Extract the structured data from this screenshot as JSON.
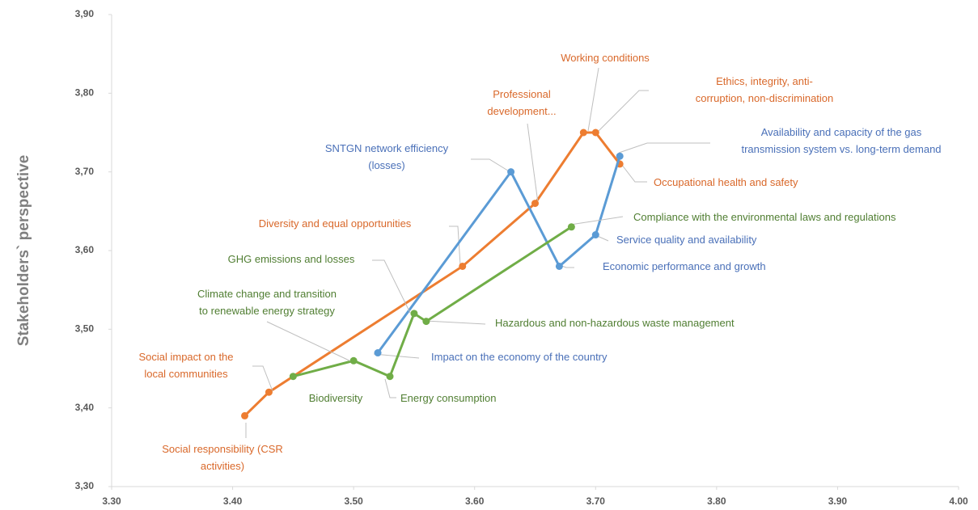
{
  "chart_data": {
    "type": "scatter",
    "y_label": "Stakeholders` perspective",
    "xlim": [
      3.3,
      4.0
    ],
    "ylim": [
      3.3,
      3.9
    ],
    "xticks": [
      {
        "value": 3.3,
        "label": "3.30"
      },
      {
        "value": 3.4,
        "label": "3.40"
      },
      {
        "value": 3.5,
        "label": "3.50"
      },
      {
        "value": 3.6,
        "label": "3.60"
      },
      {
        "value": 3.7,
        "label": "3.70"
      },
      {
        "value": 3.8,
        "label": "3.80"
      },
      {
        "value": 3.9,
        "label": "3.90"
      },
      {
        "value": 4.0,
        "label": "4.00"
      }
    ],
    "yticks": [
      {
        "value": 3.3,
        "label": "3,30"
      },
      {
        "value": 3.4,
        "label": "3,40"
      },
      {
        "value": 3.5,
        "label": "3,50"
      },
      {
        "value": 3.6,
        "label": "3,60"
      },
      {
        "value": 3.7,
        "label": "3,70"
      },
      {
        "value": 3.8,
        "label": "3,80"
      },
      {
        "value": 3.9,
        "label": "3,90"
      }
    ],
    "grid": false,
    "series": [
      {
        "color": "#ed7d31",
        "label_color": "#d9682a",
        "x": [
          3.41,
          3.43,
          3.59,
          3.65,
          3.69,
          3.7,
          3.72
        ],
        "values": [
          3.39,
          3.42,
          3.58,
          3.66,
          3.75,
          3.75,
          3.71
        ],
        "labels": [
          [
            "Social responsibility (CSR",
            "activities)"
          ],
          [
            "Social impact on the",
            "local communities"
          ],
          [
            "Diversity and equal opportunities"
          ],
          [
            "Professional",
            "development..."
          ],
          [
            "Working conditions"
          ],
          [
            "Ethics, integrity, anti-",
            "corruption, non-discrimination"
          ],
          [
            "Occupational health and safety"
          ]
        ]
      },
      {
        "color": "#5b9bd5",
        "label_color": "#4a70b8",
        "x": [
          3.52,
          3.63,
          3.67,
          3.7,
          3.72
        ],
        "values": [
          3.47,
          3.7,
          3.58,
          3.62,
          3.72
        ],
        "labels": [
          [
            "Impact on the economy of the country"
          ],
          [
            "SNTGN network efficiency",
            "(losses)"
          ],
          [
            "Economic performance and growth"
          ],
          [
            "Service quality and availability"
          ],
          [
            "Availability and capacity of the gas",
            "transmission system vs. long-term demand"
          ]
        ]
      },
      {
        "color": "#70ad47",
        "label_color": "#507e32",
        "x": [
          3.45,
          3.5,
          3.53,
          3.55,
          3.56,
          3.68
        ],
        "values": [
          3.44,
          3.46,
          3.44,
          3.52,
          3.51,
          3.63
        ],
        "labels": [
          [
            "Biodiversity"
          ],
          [
            "Climate change and transition",
            "to renewable energy strategy"
          ],
          [
            "Energy consumption"
          ],
          [
            "GHG emissions and losses"
          ],
          [
            "Hazardous and non-hazardous waste management"
          ],
          [
            "Compliance with the environmental laws and regulations"
          ]
        ]
      }
    ]
  }
}
